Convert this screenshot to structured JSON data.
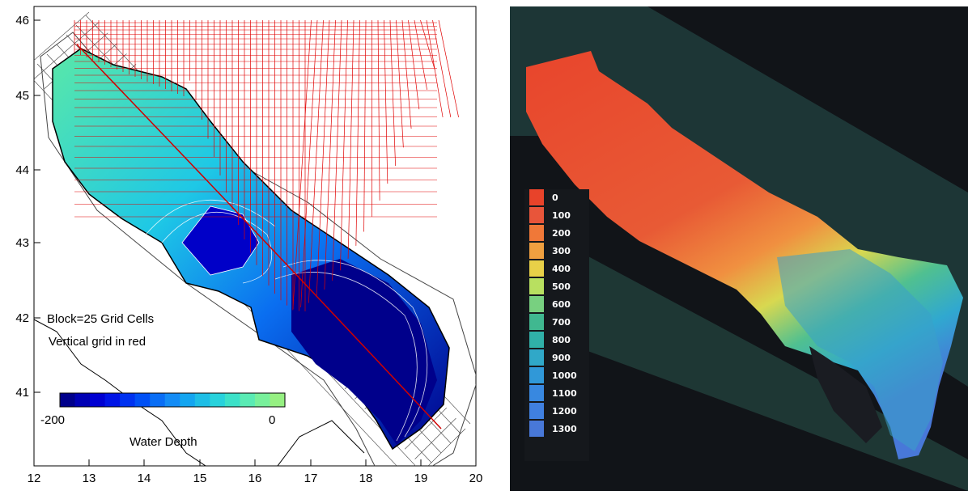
{
  "left_map": {
    "y_ticks": [
      "46",
      "45",
      "44",
      "43",
      "42",
      "41"
    ],
    "x_ticks": [
      "12",
      "13",
      "14",
      "15",
      "16",
      "17",
      "18",
      "19",
      "20"
    ],
    "annotation_line1": "Block=25 Grid Cells",
    "annotation_line2": "Vertical grid in red",
    "colorbar": {
      "min_label": "-200",
      "max_label": "0",
      "title": "Water Depth",
      "colors": [
        "#00008b",
        "#0000b4",
        "#0000d2",
        "#0014e6",
        "#0032f0",
        "#0050f5",
        "#0a6ef5",
        "#148cf5",
        "#14a5f0",
        "#1ebee6",
        "#28d2dc",
        "#3ce1c8",
        "#5aebb4",
        "#78f09b",
        "#96f082"
      ]
    },
    "grid_color": "#444444",
    "vertical_grid_color": "#e00000"
  },
  "right_3d": {
    "legend": [
      {
        "label": "0",
        "color": "#e8432a"
      },
      {
        "label": "100",
        "color": "#e8553a"
      },
      {
        "label": "200",
        "color": "#f07838"
      },
      {
        "label": "300",
        "color": "#f0a040"
      },
      {
        "label": "400",
        "color": "#e8d048"
      },
      {
        "label": "500",
        "color": "#b8e060"
      },
      {
        "label": "600",
        "color": "#78d080"
      },
      {
        "label": "700",
        "color": "#40b890"
      },
      {
        "label": "800",
        "color": "#30b0a8"
      },
      {
        "label": "900",
        "color": "#30a8c8"
      },
      {
        "label": "1000",
        "color": "#3098d8"
      },
      {
        "label": "1100",
        "color": "#3888e0"
      },
      {
        "label": "1200",
        "color": "#4080e0"
      },
      {
        "label": "1300",
        "color": "#4878d8"
      }
    ]
  }
}
